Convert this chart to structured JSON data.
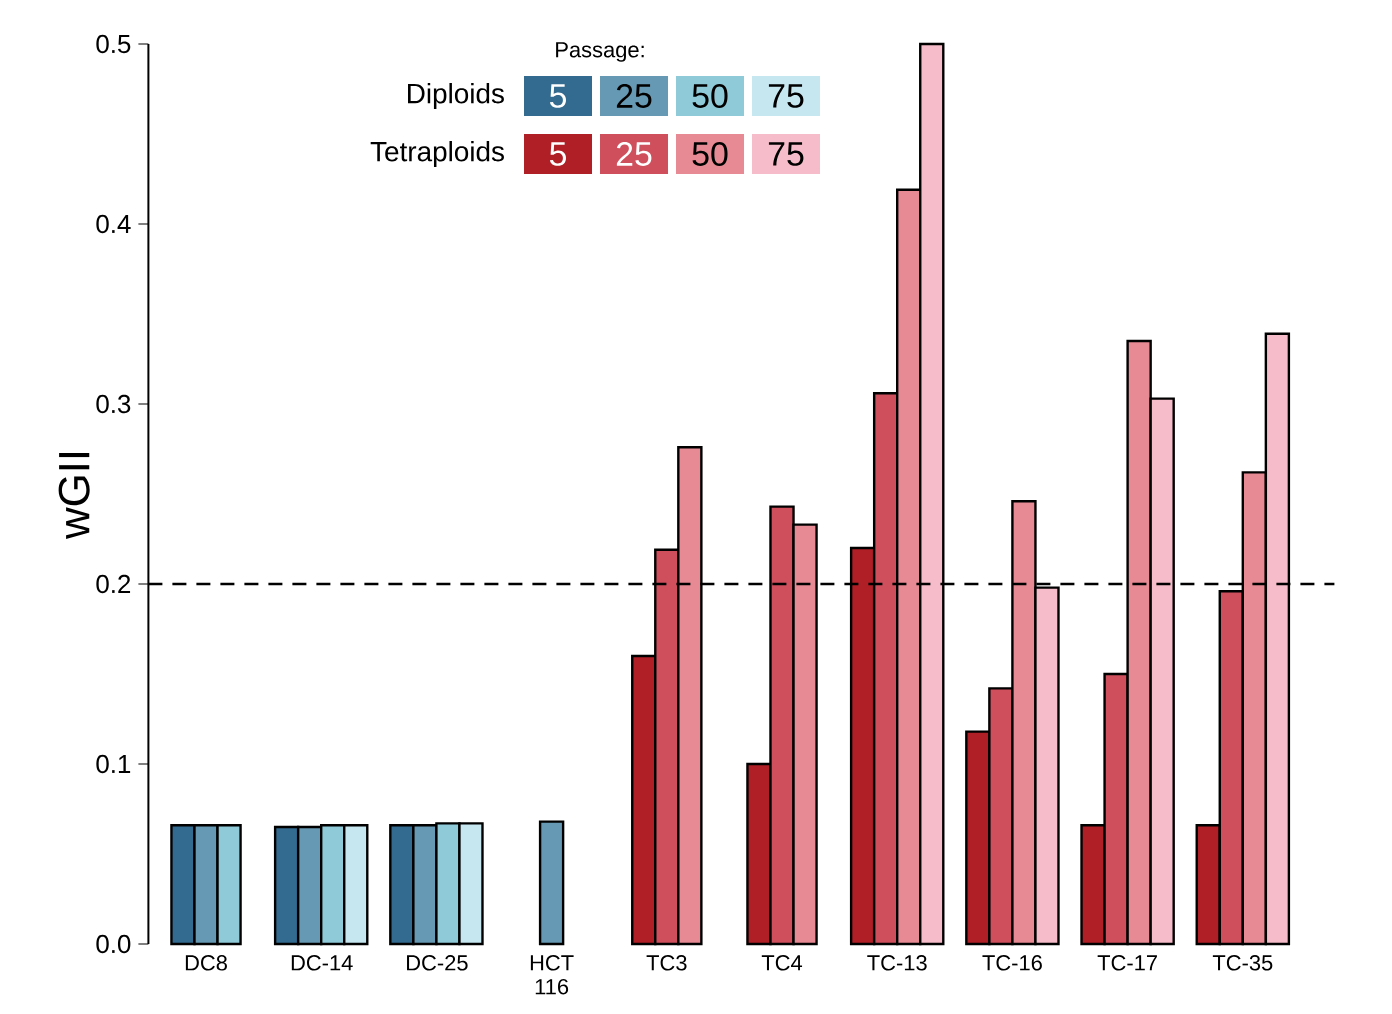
{
  "chart_data": {
    "type": "bar",
    "ylabel": "wGII",
    "legend_title": "Passage:",
    "legend": "top left",
    "categories": [
      "DC8",
      "DC-14",
      "DC-25",
      "HCT 116",
      "TC3",
      "TC4",
      "TC-13",
      "TC-16",
      "TC-17",
      "TC-35"
    ],
    "series": [
      {
        "name": "5",
        "color": "#336a8f",
        "values": [
          0.066,
          0.065,
          0.066,
          null,
          null,
          null,
          null,
          null,
          null,
          null
        ]
      },
      {
        "name": "25",
        "color": "#6699b3",
        "values": [
          0.066,
          0.065,
          0.066,
          0.068,
          null,
          null,
          null,
          null,
          null,
          null
        ]
      },
      {
        "name": "50",
        "color": "#8ecad8",
        "values": [
          0.066,
          0.066,
          0.067,
          null,
          null,
          null,
          null,
          null,
          null,
          null
        ]
      },
      {
        "name": "75",
        "color": "#c6e6f0",
        "values": [
          null,
          0.066,
          0.067,
          null,
          null,
          null,
          null,
          null,
          null,
          null
        ]
      },
      {
        "name": "5",
        "color": "#b01f26",
        "values": [
          null,
          null,
          null,
          null,
          0.16,
          0.1,
          0.22,
          0.118,
          0.066,
          0.066
        ]
      },
      {
        "name": "25",
        "color": "#cf4f5c",
        "values": [
          null,
          null,
          null,
          null,
          0.219,
          0.243,
          0.306,
          0.142,
          0.15,
          0.196
        ]
      },
      {
        "name": "50",
        "color": "#e88a94",
        "values": [
          null,
          null,
          null,
          null,
          0.276,
          0.233,
          0.419,
          0.246,
          0.335,
          0.262
        ]
      },
      {
        "name": "75",
        "color": "#f7bcc9",
        "values": [
          null,
          null,
          null,
          null,
          null,
          null,
          0.5,
          0.198,
          0.303,
          0.339
        ]
      }
    ],
    "annotations": [
      "Diploids",
      "Tetraploids"
    ],
    "ylim": [
      0,
      0.5
    ],
    "yticks": [
      {
        "value": 0,
        "label": "0.0"
      },
      0.1,
      0.2,
      0.3,
      0.4,
      0.5
    ],
    "ref_lines": [
      {
        "axis": "y",
        "value": 0.2,
        "line_style": "dashed",
        "color": "#000000"
      }
    ]
  }
}
